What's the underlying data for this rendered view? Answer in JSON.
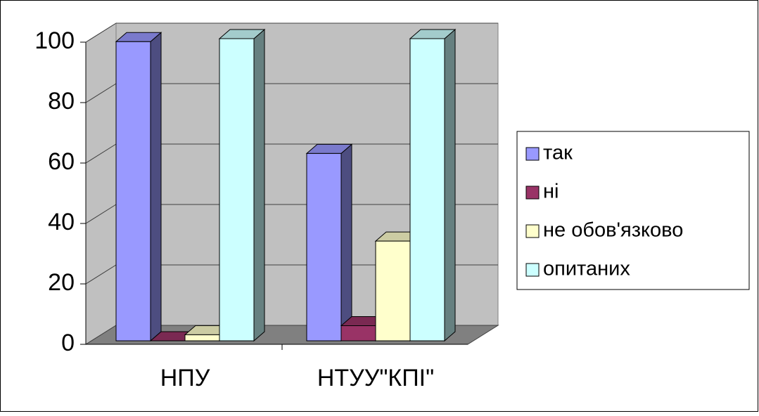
{
  "chart_data": {
    "type": "bar3d",
    "categories": [
      "НПУ",
      "НТУУ\"КПІ\""
    ],
    "series": [
      {
        "name": "так",
        "color": "#9999ff",
        "values": [
          99,
          62
        ]
      },
      {
        "name": "ні",
        "color": "#993366",
        "values": [
          0,
          5
        ]
      },
      {
        "name": "не обов'язково",
        "color": "#ffffcc",
        "values": [
          2,
          33
        ]
      },
      {
        "name": "опитаних",
        "color": "#ccffff",
        "values": [
          100,
          100
        ]
      }
    ],
    "ylim": [
      0,
      100
    ],
    "yticks": [
      0,
      20,
      40,
      60,
      80,
      100
    ],
    "grid": true,
    "legend": "right"
  }
}
